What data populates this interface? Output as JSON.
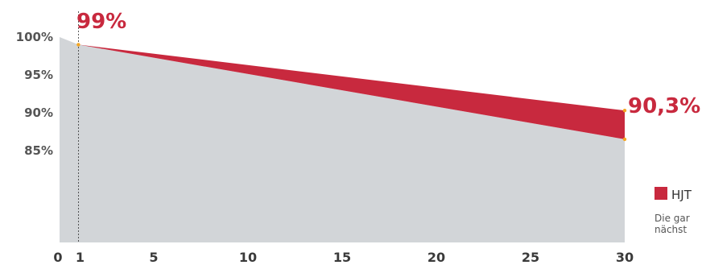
{
  "chart_data": {
    "type": "area",
    "x_ticks": [
      0,
      1,
      5,
      10,
      15,
      20,
      25,
      30
    ],
    "y_ticks": [
      "100%",
      "95%",
      "90%",
      "85%"
    ],
    "y_tick_values": [
      100,
      95,
      90,
      85
    ],
    "xlim": [
      0,
      30
    ],
    "series": [
      {
        "name": "HJT",
        "x": [
          0,
          1,
          30
        ],
        "values": [
          100,
          99,
          90.3
        ],
        "color": "#c8293e"
      },
      {
        "name": "",
        "x": [
          0,
          1,
          30
        ],
        "values": [
          100,
          99,
          86.5
        ],
        "color": "#d2d5d8"
      }
    ],
    "annotations": [
      {
        "x": 1,
        "label": "99%"
      },
      {
        "x": 30,
        "label": "90,3%"
      }
    ],
    "legend": {
      "label": "HJT",
      "note_line1": "Die gar",
      "note_line2": "nächst"
    },
    "grid": false,
    "marker_color": "#f5a623",
    "label_color": "#c8293e"
  }
}
